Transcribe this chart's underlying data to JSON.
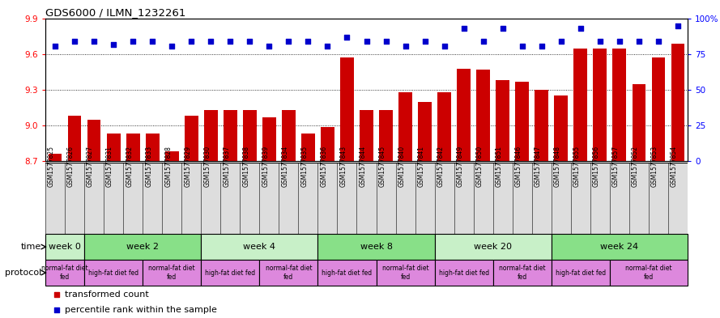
{
  "title": "GDS6000 / ILMN_1232261",
  "samples": [
    "GSM1577825",
    "GSM1577826",
    "GSM1577827",
    "GSM1577831",
    "GSM1577832",
    "GSM1577833",
    "GSM1577828",
    "GSM1577829",
    "GSM1577830",
    "GSM1577837",
    "GSM1577838",
    "GSM1577839",
    "GSM1577834",
    "GSM1577835",
    "GSM1577836",
    "GSM1577843",
    "GSM1577844",
    "GSM1577845",
    "GSM1577840",
    "GSM1577841",
    "GSM1577842",
    "GSM1577849",
    "GSM1577850",
    "GSM1577851",
    "GSM1577846",
    "GSM1577847",
    "GSM1577848",
    "GSM1577855",
    "GSM1577856",
    "GSM1577857",
    "GSM1577852",
    "GSM1577853",
    "GSM1577854"
  ],
  "red_values": [
    8.76,
    9.08,
    9.05,
    8.93,
    8.93,
    8.93,
    8.78,
    9.08,
    9.13,
    9.13,
    9.13,
    9.07,
    9.13,
    8.93,
    8.99,
    9.57,
    9.13,
    9.13,
    9.28,
    9.2,
    9.28,
    9.48,
    9.47,
    9.38,
    9.37,
    9.3,
    9.25,
    9.65,
    9.65,
    9.65,
    9.35,
    9.57,
    9.69
  ],
  "blue_values": [
    81,
    84,
    84,
    82,
    84,
    84,
    81,
    84,
    84,
    84,
    84,
    81,
    84,
    84,
    81,
    87,
    84,
    84,
    81,
    84,
    81,
    93,
    84,
    93,
    81,
    81,
    84,
    93,
    84,
    84,
    84,
    84,
    95
  ],
  "ylim_left": [
    8.7,
    9.9
  ],
  "ylim_right": [
    0,
    100
  ],
  "yticks_left": [
    8.7,
    9.0,
    9.3,
    9.6,
    9.9
  ],
  "yticks_right": [
    0,
    25,
    50,
    75,
    100
  ],
  "bar_color": "#cc0000",
  "dot_color": "#0000cc",
  "grid_lines": [
    9.0,
    9.3,
    9.6
  ],
  "time_groups": [
    {
      "label": "week 0",
      "start": 0,
      "end": 2,
      "color": "#aaeaaa"
    },
    {
      "label": "week 2",
      "start": 2,
      "end": 8,
      "color": "#aaeaaa"
    },
    {
      "label": "week 4",
      "start": 8,
      "end": 14,
      "color": "#aaeaaa"
    },
    {
      "label": "week 8",
      "start": 14,
      "end": 20,
      "color": "#aaeaaa"
    },
    {
      "label": "week 20",
      "start": 20,
      "end": 26,
      "color": "#aaeaaa"
    },
    {
      "label": "week 24",
      "start": 26,
      "end": 33,
      "color": "#aaeaaa"
    }
  ],
  "time_alt_colors": [
    "#c8f0c8",
    "#88dd88",
    "#c8f0c8",
    "#88dd88",
    "#c8f0c8",
    "#88dd88"
  ],
  "protocol_groups": [
    {
      "label": "normal-fat diet\nfed",
      "start": 0,
      "end": 2
    },
    {
      "label": "high-fat diet fed",
      "start": 2,
      "end": 5
    },
    {
      "label": "normal-fat diet\nfed",
      "start": 5,
      "end": 8
    },
    {
      "label": "high-fat diet fed",
      "start": 8,
      "end": 11
    },
    {
      "label": "normal-fat diet\nfed",
      "start": 11,
      "end": 14
    },
    {
      "label": "high-fat diet fed",
      "start": 14,
      "end": 17
    },
    {
      "label": "normal-fat diet\nfed",
      "start": 17,
      "end": 20
    },
    {
      "label": "high-fat diet fed",
      "start": 20,
      "end": 23
    },
    {
      "label": "normal-fat diet\nfed",
      "start": 23,
      "end": 26
    },
    {
      "label": "high-fat diet fed",
      "start": 26,
      "end": 29
    },
    {
      "label": "normal-fat diet\nfed",
      "start": 29,
      "end": 33
    }
  ],
  "proto_color": "#dd88dd",
  "legend_red": "transformed count",
  "legend_blue": "percentile rank within the sample",
  "time_label": "time",
  "protocol_label": "protocol",
  "bg_color": "#e8e8e8"
}
